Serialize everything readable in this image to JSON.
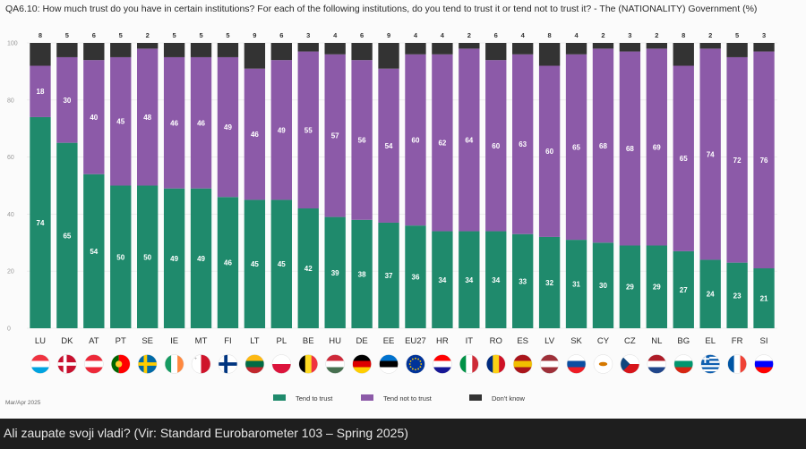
{
  "caption": "Ali zaupate svoji vladi? (Vir: Standard Eurobarometer 103 – Spring 2025)",
  "source_note": "Mar/Apr 2025",
  "colors": {
    "trust": "#1f8a6c",
    "not_trust": "#8c5aa8",
    "dont_know": "#333333",
    "grid": "#e4e4e4"
  },
  "chart_data": {
    "type": "bar",
    "stacked": true,
    "title": "QA6.10: How much trust do you have in certain institutions? For each of the following institutions, do you tend to trust it or tend not to trust it? - The (NATIONALITY) Government (%)",
    "categories": [
      "LU",
      "DK",
      "AT",
      "PT",
      "SE",
      "IE",
      "MT",
      "FI",
      "LT",
      "PL",
      "BE",
      "HU",
      "DE",
      "EE",
      "EU27",
      "HR",
      "IT",
      "RO",
      "ES",
      "LV",
      "SK",
      "CY",
      "CZ",
      "NL",
      "BG",
      "EL",
      "FR",
      "SI"
    ],
    "series": [
      {
        "name": "Tend to trust",
        "values": [
          74,
          65,
          54,
          50,
          50,
          49,
          49,
          46,
          45,
          45,
          42,
          39,
          38,
          37,
          36,
          34,
          34,
          34,
          33,
          32,
          31,
          30,
          29,
          29,
          27,
          24,
          23,
          21
        ]
      },
      {
        "name": "Tend not to trust",
        "values": [
          18,
          30,
          40,
          45,
          48,
          46,
          46,
          49,
          46,
          49,
          55,
          57,
          56,
          54,
          60,
          62,
          64,
          60,
          63,
          60,
          65,
          68,
          68,
          69,
          65,
          74,
          72,
          76
        ]
      },
      {
        "name": "Don't know",
        "values": [
          8,
          5,
          6,
          5,
          2,
          5,
          5,
          5,
          9,
          6,
          3,
          4,
          6,
          9,
          4,
          4,
          2,
          6,
          4,
          8,
          4,
          2,
          3,
          2,
          8,
          2,
          5,
          3
        ]
      }
    ],
    "ylim": [
      0,
      100
    ],
    "yticks": [
      0,
      20,
      40,
      60,
      80,
      100
    ],
    "xlabel": "",
    "ylabel": "",
    "legend_position": "bottom-center"
  },
  "flags": [
    {
      "stripes": "h",
      "colors": [
        "#ef3340",
        "#ffffff",
        "#00a3e0"
      ]
    },
    {
      "type": "nordic",
      "bg": "#c8102e",
      "cross": "#ffffff"
    },
    {
      "stripes": "h",
      "colors": [
        "#ed2939",
        "#ffffff",
        "#ed2939"
      ]
    },
    {
      "stripes": "v2",
      "colors": [
        "#006600",
        "#ff0000"
      ]
    },
    {
      "type": "nordic",
      "bg": "#006aa7",
      "cross": "#fecc00"
    },
    {
      "stripes": "v",
      "colors": [
        "#169b62",
        "#ffffff",
        "#ff883e"
      ]
    },
    {
      "stripes": "v",
      "colors": [
        "#ffffff",
        "#ffffff",
        "#cf142b"
      ]
    },
    {
      "type": "nordic",
      "bg": "#ffffff",
      "cross": "#003580"
    },
    {
      "stripes": "h",
      "colors": [
        "#fdb913",
        "#006a44",
        "#c1272d"
      ]
    },
    {
      "stripes": "h2",
      "colors": [
        "#ffffff",
        "#dc143c"
      ]
    },
    {
      "stripes": "v",
      "colors": [
        "#000000",
        "#fdda24",
        "#ef3340"
      ]
    },
    {
      "stripes": "h",
      "colors": [
        "#ce2939",
        "#ffffff",
        "#477050"
      ]
    },
    {
      "stripes": "h",
      "colors": [
        "#000000",
        "#dd0000",
        "#ffce00"
      ]
    },
    {
      "stripes": "h",
      "colors": [
        "#0072ce",
        "#000000",
        "#ffffff"
      ]
    },
    {
      "type": "eu",
      "bg": "#003399",
      "star": "#ffcc00"
    },
    {
      "stripes": "h",
      "colors": [
        "#ff0000",
        "#ffffff",
        "#171796"
      ]
    },
    {
      "stripes": "v",
      "colors": [
        "#009246",
        "#ffffff",
        "#ce2b37"
      ]
    },
    {
      "stripes": "v",
      "colors": [
        "#002b7f",
        "#fcd116",
        "#ce1126"
      ]
    },
    {
      "stripes": "h",
      "colors": [
        "#aa151b",
        "#f1bf00",
        "#aa151b"
      ]
    },
    {
      "stripes": "h",
      "colors": [
        "#9e3039",
        "#ffffff",
        "#9e3039"
      ]
    },
    {
      "stripes": "h",
      "colors": [
        "#ffffff",
        "#0b4ea2",
        "#ee1c25"
      ]
    },
    {
      "type": "plain",
      "bg": "#ffffff",
      "mark": "#d57800"
    },
    {
      "type": "cz"
    },
    {
      "stripes": "h",
      "colors": [
        "#ae1c28",
        "#ffffff",
        "#21468b"
      ]
    },
    {
      "stripes": "h",
      "colors": [
        "#ffffff",
        "#00966e",
        "#d62612"
      ]
    },
    {
      "type": "gr"
    },
    {
      "stripes": "v",
      "colors": [
        "#0055a4",
        "#ffffff",
        "#ef4135"
      ]
    },
    {
      "stripes": "h",
      "colors": [
        "#ffffff",
        "#0000ff",
        "#ff0000"
      ]
    }
  ]
}
